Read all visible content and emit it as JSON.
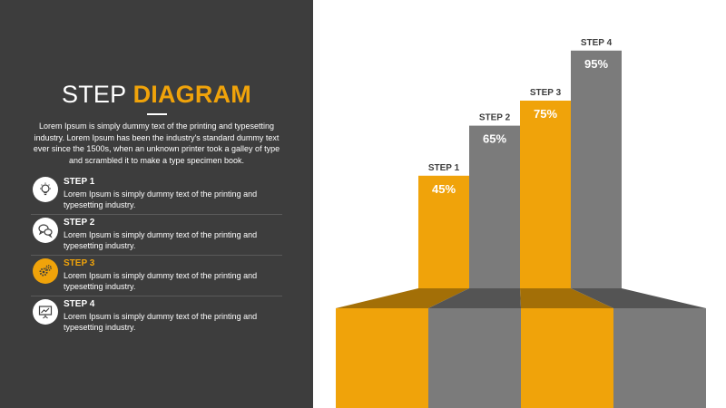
{
  "slide": {
    "title_plain": "STEP ",
    "title_accent": "DIAGRAM",
    "intro": "Lorem Ipsum is simply dummy text of the printing and typesetting industry. Lorem Ipsum has been the industry's standard dummy text ever since the 1500s, when an unknown printer took a galley of type and scrambled it to make a type specimen book."
  },
  "steps": [
    {
      "title": "STEP 1",
      "desc": "Lorem Ipsum is simply dummy text of the printing and typesetting industry.",
      "icon": "lightbulb-icon",
      "active": false
    },
    {
      "title": "STEP 2",
      "desc": "Lorem Ipsum is simply dummy text of the printing and typesetting industry.",
      "icon": "chat-bubbles-icon",
      "active": false
    },
    {
      "title": "STEP 3",
      "desc": "Lorem Ipsum is simply dummy text of the printing and typesetting industry.",
      "icon": "gears-icon",
      "active": true
    },
    {
      "title": "STEP 4",
      "desc": "Lorem Ipsum is simply dummy text of the printing and typesetting industry.",
      "icon": "presentation-board-icon",
      "active": false
    }
  ],
  "colors": {
    "accent": "#f0a30a",
    "gray": "#7b7b7b",
    "dark": "#3d3d3d"
  },
  "chart_data": {
    "type": "bar",
    "categories": [
      "STEP 1",
      "STEP 2",
      "STEP 3",
      "STEP 4"
    ],
    "values": [
      45,
      65,
      75,
      95
    ],
    "value_labels": [
      "45%",
      "65%",
      "75%",
      "95%"
    ],
    "ylim": [
      0,
      100
    ],
    "bar_colors": [
      "#f0a30a",
      "#7b7b7b",
      "#f0a30a",
      "#7b7b7b"
    ],
    "grid": false,
    "legend": "none"
  }
}
